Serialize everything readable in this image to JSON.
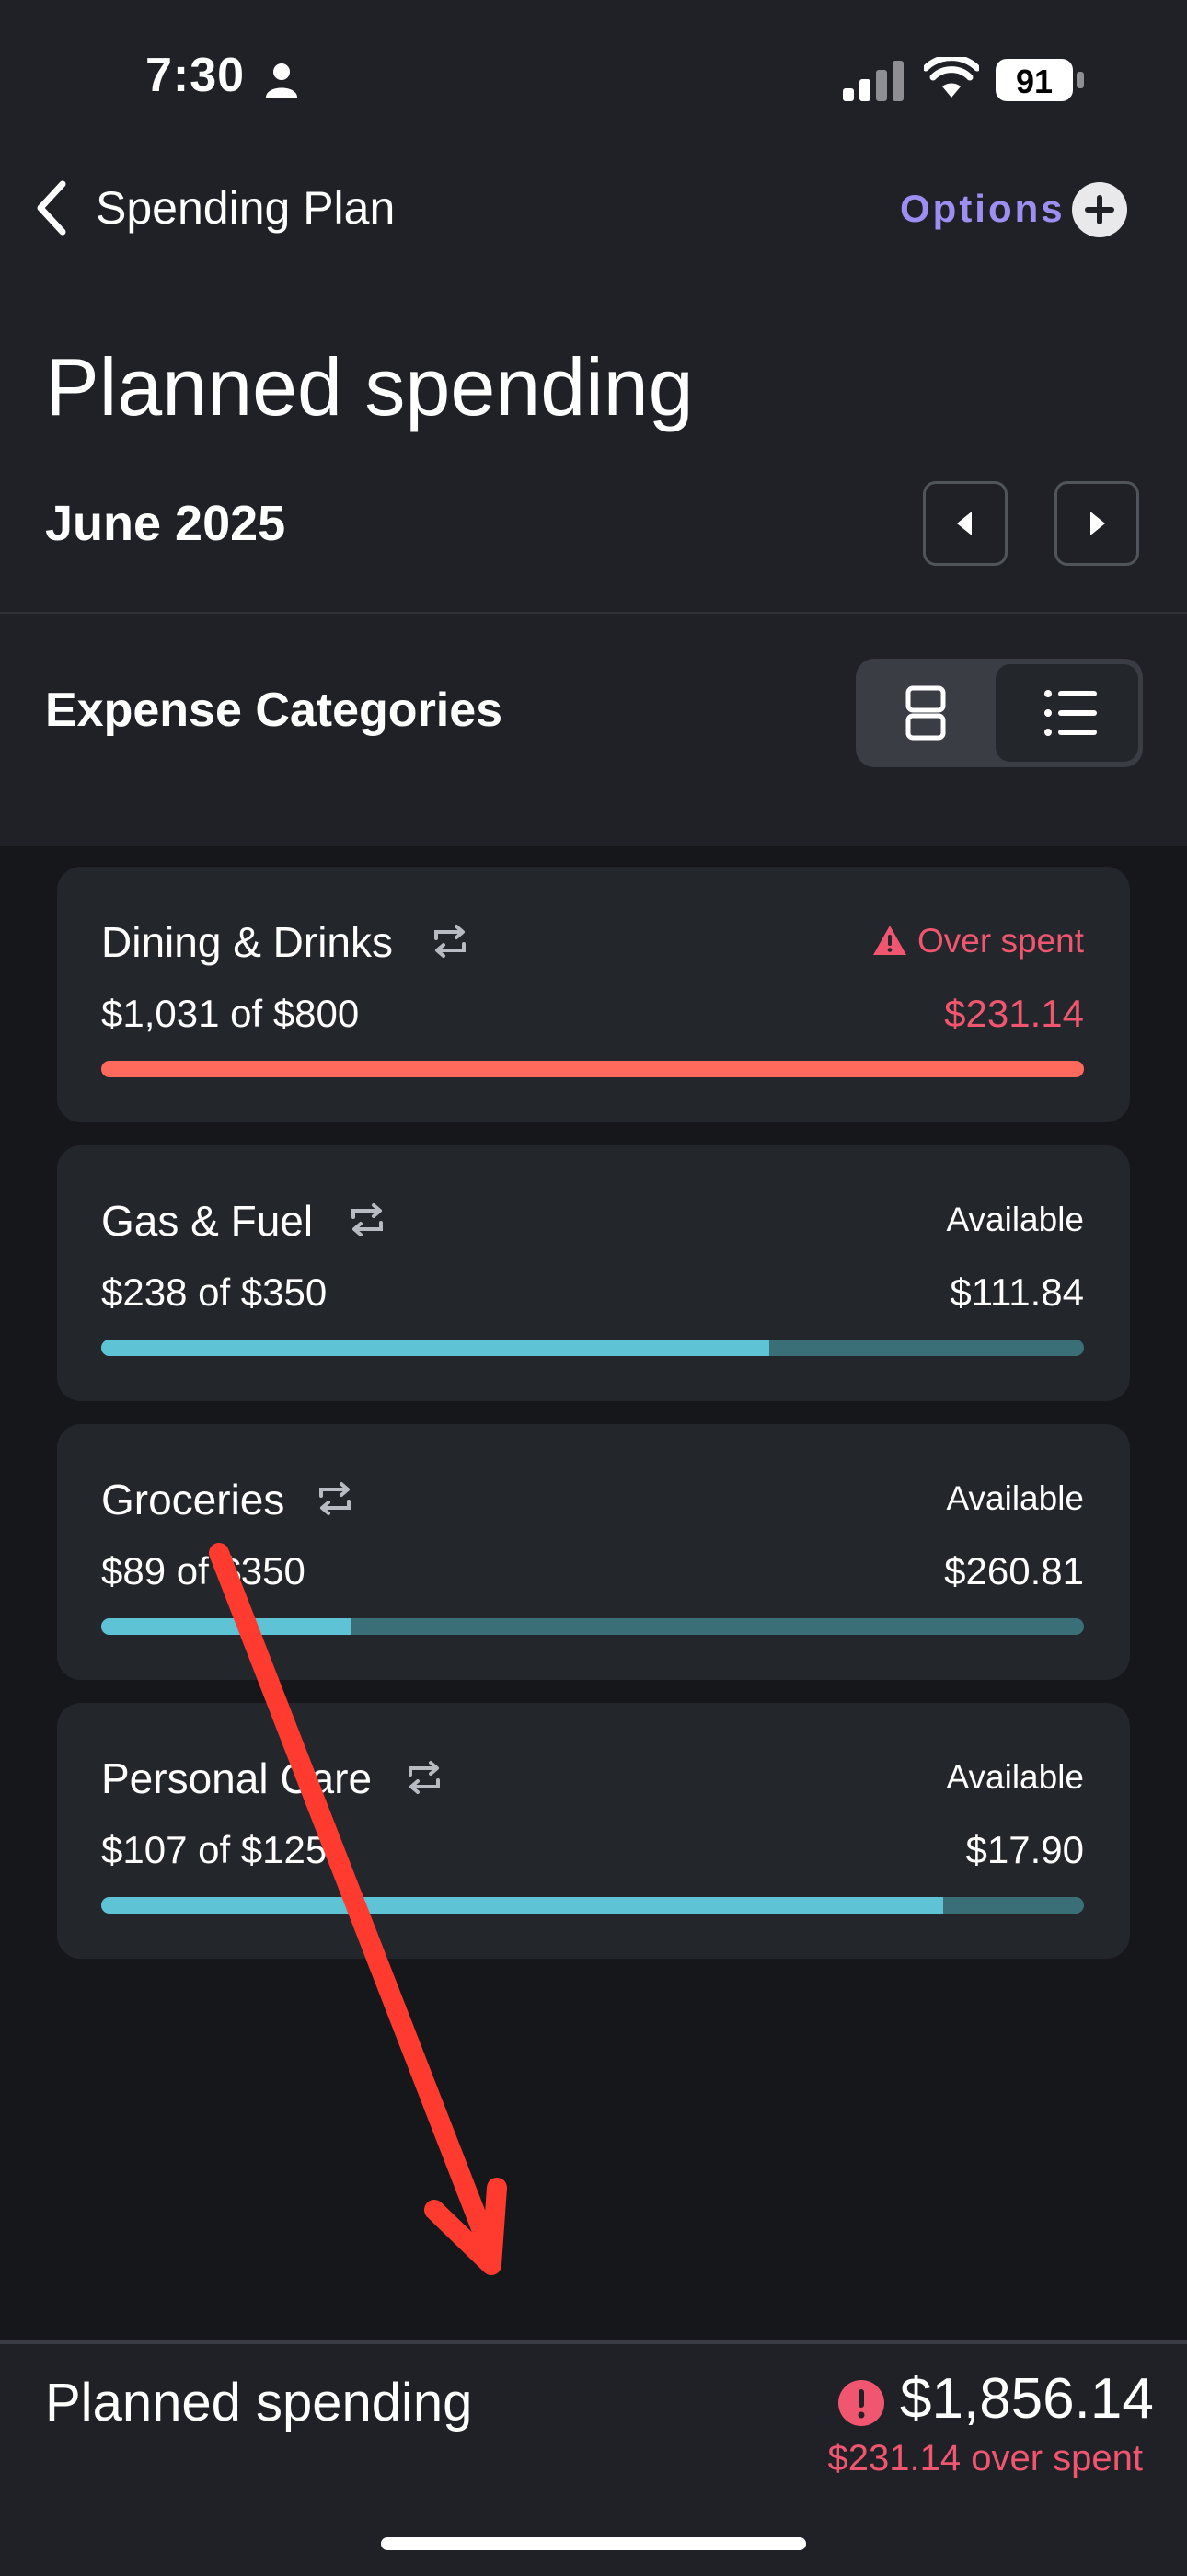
{
  "status_bar": {
    "time": "7:30",
    "battery": "91"
  },
  "nav": {
    "back_label": "Spending Plan",
    "options_label": "Options"
  },
  "header": {
    "title": "Planned spending",
    "month": "June 2025"
  },
  "section": {
    "title": "Expense Categories"
  },
  "categories": [
    {
      "name": "Dining & Drinks",
      "status": "Over spent",
      "amount": "$1,031 of $800",
      "remaining": "$231.14",
      "progress": 1.0
    },
    {
      "name": "Gas & Fuel",
      "status": "Available",
      "amount": "$238 of $350",
      "remaining": "$111.84",
      "progress": 0.68
    },
    {
      "name": "Groceries",
      "status": "Available",
      "amount": "$89 of $350",
      "remaining": "$260.81",
      "progress": 0.255
    },
    {
      "name": "Personal Care",
      "status": "Available",
      "amount": "$107 of $125",
      "remaining": "$17.90",
      "progress": 0.857
    }
  ],
  "footer": {
    "label": "Planned spending",
    "total": "$1,856.14",
    "over_spent": "$231.14 over spent"
  },
  "colors": {
    "accent": "#9d8ff1",
    "over": "#f0566f",
    "bar_fill": "#5ec3d5",
    "bar_track": "#3a6f78",
    "over_bar": "#ff6a5c"
  }
}
